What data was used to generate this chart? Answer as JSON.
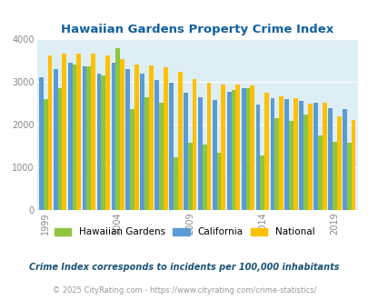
{
  "title": "Hawaiian Gardens Property Crime Index",
  "years": [
    1999,
    2000,
    2001,
    2002,
    2003,
    2004,
    2005,
    2006,
    2007,
    2008,
    2009,
    2010,
    2011,
    2012,
    2013,
    2014,
    2015,
    2016,
    2017,
    2018,
    2019,
    2020
  ],
  "hawaiian_gardens": [
    2600,
    2850,
    3400,
    3350,
    3150,
    3780,
    2370,
    2630,
    2500,
    1230,
    1580,
    1540,
    1350,
    2800,
    2860,
    1280,
    2150,
    2090,
    2240,
    1740,
    1600,
    1580
  ],
  "california": [
    3100,
    3300,
    3450,
    3350,
    3200,
    3450,
    3300,
    3180,
    3050,
    2970,
    2750,
    2630,
    2580,
    2770,
    2850,
    2470,
    2620,
    2600,
    2560,
    2510,
    2390,
    2360
  ],
  "national": [
    3620,
    3650,
    3660,
    3650,
    3610,
    3520,
    3400,
    3380,
    3330,
    3230,
    3060,
    2970,
    2940,
    2940,
    2920,
    2740,
    2650,
    2620,
    2490,
    2500,
    2180,
    2100
  ],
  "hg_color": "#8dc63f",
  "ca_color": "#5b9bd5",
  "nat_color": "#ffc000",
  "bg_color": "#deeef5",
  "title_color": "#1060a0",
  "footnote1_color": "#1a5276",
  "footnote2_color": "#999999",
  "legend_labels": [
    "Hawaiian Gardens",
    "California",
    "National"
  ],
  "footnote1": "Crime Index corresponds to incidents per 100,000 inhabitants",
  "footnote2": "© 2025 CityRating.com - https://www.cityrating.com/crime-statistics/",
  "ylim": [
    0,
    4000
  ],
  "yticks": [
    0,
    1000,
    2000,
    3000,
    4000
  ],
  "tick_years": [
    1999,
    2004,
    2009,
    2014,
    2019
  ]
}
